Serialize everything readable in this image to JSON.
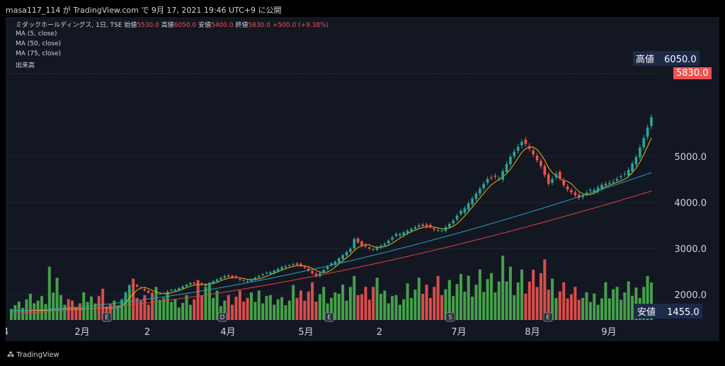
{
  "header": {
    "text": "masa117_114 が TradingView.com で 9月 17, 2021 19:46 UTC+9 に公開"
  },
  "legend": {
    "symbol": "ミダックホールディングス, 1日, TSE",
    "open_label": "始値",
    "open": "5530.0",
    "high_label": "高値",
    "high": "6050.0",
    "low_label": "安値",
    "low": "5400.0",
    "close_label": "終値",
    "close": "5830.0",
    "change": "+500.0 (+9.38%)",
    "ma5": "MA (5, close)",
    "ma50": "MA (50, close)",
    "ma75": "MA (75, close)",
    "volume": "出来高"
  },
  "tags": {
    "high_label": "高値",
    "high_value": "6050.0",
    "last_value": "5830.0",
    "low_label": "安値",
    "low_value": "1455.0"
  },
  "footer": {
    "brand": "TradingView"
  },
  "colors": {
    "up": "#26a69a",
    "down": "#ef5350",
    "vol_up": "#4caf50",
    "vol_down": "#ef5350",
    "ma5": "#f5b400",
    "ma50": "#26a2c4",
    "ma75": "#e04242",
    "tag_blue": "#1e2a4a"
  },
  "chart_data": {
    "type": "candlestick",
    "x_tick_labels": [
      "4",
      "2月",
      "2",
      "4月",
      "5月",
      "2",
      "7月",
      "8月",
      "9月"
    ],
    "y_tick_labels": [
      "5000.0",
      "4000.0",
      "3000.0",
      "2000.0"
    ],
    "y_ticks": [
      5000,
      4000,
      3000,
      2000
    ],
    "ylim": [
      1450,
      6800
    ],
    "event_markers": [
      "E",
      "D",
      "E",
      "S",
      "E"
    ],
    "price_path": [
      [
        0,
        1650
      ],
      [
        8,
        1660
      ],
      [
        14,
        1700
      ],
      [
        18,
        1690
      ],
      [
        22,
        1720
      ],
      [
        26,
        1700
      ],
      [
        28,
        1750
      ],
      [
        31,
        2200
      ],
      [
        34,
        2150
      ],
      [
        37,
        2000
      ],
      [
        40,
        2030
      ],
      [
        44,
        2150
      ],
      [
        47,
        2250
      ],
      [
        50,
        2200
      ],
      [
        53,
        2300
      ],
      [
        56,
        2400
      ],
      [
        59,
        2350
      ],
      [
        62,
        2300
      ],
      [
        65,
        2400
      ],
      [
        68,
        2500
      ],
      [
        71,
        2600
      ],
      [
        74,
        2650
      ],
      [
        77,
        2600
      ],
      [
        80,
        2400
      ],
      [
        83,
        2600
      ],
      [
        86,
        2800
      ],
      [
        89,
        3000
      ],
      [
        90,
        3200
      ],
      [
        92,
        3050
      ],
      [
        95,
        3000
      ],
      [
        98,
        3100
      ],
      [
        101,
        3300
      ],
      [
        104,
        3400
      ],
      [
        107,
        3500
      ],
      [
        110,
        3450
      ],
      [
        113,
        3400
      ],
      [
        116,
        3600
      ],
      [
        119,
        3900
      ],
      [
        122,
        4200
      ],
      [
        125,
        4500
      ],
      [
        128,
        4550
      ],
      [
        131,
        5000
      ],
      [
        134,
        5300
      ],
      [
        136,
        5200
      ],
      [
        139,
        4800
      ],
      [
        141,
        4400
      ],
      [
        143,
        4600
      ],
      [
        146,
        4300
      ],
      [
        149,
        4100
      ],
      [
        152,
        4250
      ],
      [
        155,
        4400
      ],
      [
        158,
        4450
      ],
      [
        161,
        4600
      ],
      [
        164,
        5000
      ],
      [
        166,
        5400
      ],
      [
        168,
        5830
      ]
    ],
    "ma50_start": 1650,
    "ma50_end": 4650,
    "ma75_start": 1600,
    "ma75_end": 4250,
    "volume_profile": [
      0.2,
      0.3,
      0.25,
      0.8,
      0.3,
      0.2,
      0.3,
      0.4,
      0.2,
      0.25,
      0.6,
      0.3,
      0.4,
      0.3,
      0.25,
      0.3,
      0.5,
      0.4,
      0.3,
      0.35,
      0.3,
      0.4,
      0.3,
      0.25,
      0.4,
      0.5,
      0.4,
      0.3,
      0.5,
      0.6,
      0.4,
      0.5,
      0.4,
      0.3,
      0.45,
      0.5,
      0.6,
      0.5,
      0.55,
      0.65,
      0.7,
      0.6,
      0.8,
      0.7,
      0.65,
      0.75,
      0.6,
      0.5,
      0.4,
      0.3,
      0.35,
      0.5,
      0.4,
      0.45,
      0.6,
      1.0
    ]
  }
}
